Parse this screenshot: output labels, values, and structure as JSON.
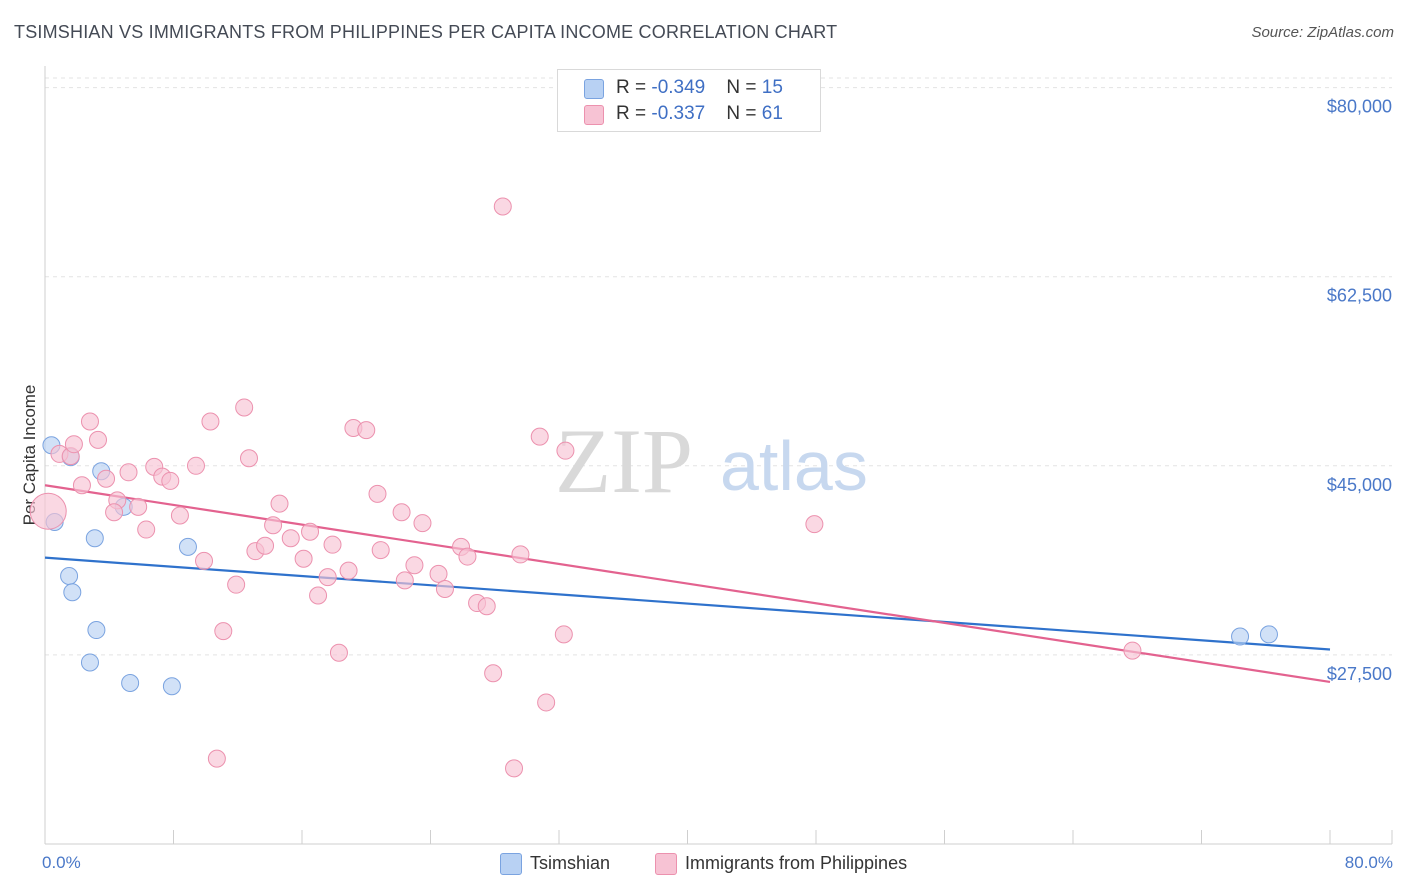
{
  "title": "TSIMSHIAN VS IMMIGRANTS FROM PHILIPPINES PER CAPITA INCOME CORRELATION CHART",
  "source": "Source: ZipAtlas.com",
  "watermark": {
    "zip": "ZIP",
    "atlas": "atlas"
  },
  "legend_top": {
    "rows": [
      {
        "r_label": "R = ",
        "r_value": "-0.349",
        "n_label": "N = ",
        "n_value": "15"
      },
      {
        "r_label": "R = ",
        "r_value": "-0.337",
        "n_label": "N = ",
        "n_value": "61"
      }
    ]
  },
  "legend_bottom": {
    "series1": "Tsimshian",
    "series2": "Immigrants from Philippines"
  },
  "colors": {
    "blue_fill": "#b8d1f3",
    "blue_stroke": "#7aa3e0",
    "blue_line": "#2f72cc",
    "pink_fill": "#f7c3d4",
    "pink_stroke": "#ec91ae",
    "pink_line": "#e3628f",
    "tick_label": "#4a78c8",
    "grid": "#e3e3e3"
  },
  "chart_data": {
    "type": "scatter",
    "title": "TSIMSHIAN VS IMMIGRANTS FROM PHILIPPINES PER CAPITA INCOME CORRELATION CHART",
    "xlabel": "",
    "ylabel": "Per Capita Income",
    "xlim": [
      0,
      80
    ],
    "ylim": [
      10000,
      82000
    ],
    "x_tick_labels": [
      "0.0%",
      "80.0%"
    ],
    "y_ticks": [
      27500,
      45000,
      62500,
      80000
    ],
    "y_tick_labels": [
      "$27,500",
      "$45,000",
      "$62,500",
      "$80,000"
    ],
    "legend_position": "top-center",
    "series": [
      {
        "name": "Tsimshian",
        "r": -0.349,
        "n": 15,
        "trend": {
          "x": [
            0,
            80
          ],
          "y": [
            36500,
            28000
          ]
        },
        "points": [
          {
            "x": 0.4,
            "y": 46900
          },
          {
            "x": 0.6,
            "y": 39800
          },
          {
            "x": 1.6,
            "y": 45800
          },
          {
            "x": 1.5,
            "y": 34800
          },
          {
            "x": 1.7,
            "y": 33300
          },
          {
            "x": 3.1,
            "y": 38300
          },
          {
            "x": 3.2,
            "y": 29800
          },
          {
            "x": 2.8,
            "y": 26800
          },
          {
            "x": 3.5,
            "y": 44500
          },
          {
            "x": 4.9,
            "y": 41200
          },
          {
            "x": 5.3,
            "y": 24900
          },
          {
            "x": 7.9,
            "y": 24600
          },
          {
            "x": 8.9,
            "y": 37500
          },
          {
            "x": 74.4,
            "y": 29200
          },
          {
            "x": 76.2,
            "y": 29400
          }
        ]
      },
      {
        "name": "Immigrants from Philippines",
        "r": -0.337,
        "n": 61,
        "trend": {
          "x": [
            0,
            80
          ],
          "y": [
            43200,
            25000
          ]
        },
        "points": [
          {
            "x": 0.2,
            "y": 40800,
            "size": "large"
          },
          {
            "x": 0.9,
            "y": 46100
          },
          {
            "x": 1.6,
            "y": 45900
          },
          {
            "x": 1.8,
            "y": 47000
          },
          {
            "x": 2.3,
            "y": 43200
          },
          {
            "x": 2.8,
            "y": 49100
          },
          {
            "x": 3.3,
            "y": 47400
          },
          {
            "x": 3.8,
            "y": 43800
          },
          {
            "x": 4.5,
            "y": 41800
          },
          {
            "x": 4.3,
            "y": 40700
          },
          {
            "x": 5.2,
            "y": 44400
          },
          {
            "x": 5.8,
            "y": 41200
          },
          {
            "x": 6.3,
            "y": 39100
          },
          {
            "x": 6.8,
            "y": 44900
          },
          {
            "x": 7.3,
            "y": 44000
          },
          {
            "x": 7.8,
            "y": 43600
          },
          {
            "x": 8.4,
            "y": 40400
          },
          {
            "x": 9.4,
            "y": 45000
          },
          {
            "x": 9.9,
            "y": 36200
          },
          {
            "x": 10.3,
            "y": 49100
          },
          {
            "x": 11.1,
            "y": 29700
          },
          {
            "x": 11.9,
            "y": 34000
          },
          {
            "x": 10.7,
            "y": 17900
          },
          {
            "x": 12.4,
            "y": 50400
          },
          {
            "x": 12.7,
            "y": 45700
          },
          {
            "x": 13.1,
            "y": 37100
          },
          {
            "x": 13.7,
            "y": 37600
          },
          {
            "x": 14.2,
            "y": 39500
          },
          {
            "x": 14.6,
            "y": 41500
          },
          {
            "x": 15.3,
            "y": 38300
          },
          {
            "x": 16.1,
            "y": 36400
          },
          {
            "x": 16.5,
            "y": 38900
          },
          {
            "x": 17.6,
            "y": 34700
          },
          {
            "x": 17.9,
            "y": 37700
          },
          {
            "x": 18.3,
            "y": 27700
          },
          {
            "x": 18.9,
            "y": 35300
          },
          {
            "x": 19.2,
            "y": 48500
          },
          {
            "x": 20.0,
            "y": 48300
          },
          {
            "x": 20.7,
            "y": 42400
          },
          {
            "x": 20.9,
            "y": 37200
          },
          {
            "x": 22.2,
            "y": 40700
          },
          {
            "x": 22.4,
            "y": 34400
          },
          {
            "x": 23.0,
            "y": 35800
          },
          {
            "x": 23.5,
            "y": 39700
          },
          {
            "x": 24.5,
            "y": 35000
          },
          {
            "x": 24.9,
            "y": 33600
          },
          {
            "x": 25.9,
            "y": 37500
          },
          {
            "x": 26.3,
            "y": 36600
          },
          {
            "x": 26.9,
            "y": 32300
          },
          {
            "x": 27.5,
            "y": 32000
          },
          {
            "x": 27.9,
            "y": 25800
          },
          {
            "x": 29.6,
            "y": 36800
          },
          {
            "x": 29.2,
            "y": 17000
          },
          {
            "x": 30.8,
            "y": 47700
          },
          {
            "x": 32.4,
            "y": 46400
          },
          {
            "x": 31.2,
            "y": 23100
          },
          {
            "x": 32.3,
            "y": 29400
          },
          {
            "x": 28.5,
            "y": 69000
          },
          {
            "x": 47.9,
            "y": 39600
          },
          {
            "x": 67.7,
            "y": 27900
          },
          {
            "x": 17.0,
            "y": 33000
          }
        ]
      }
    ]
  }
}
